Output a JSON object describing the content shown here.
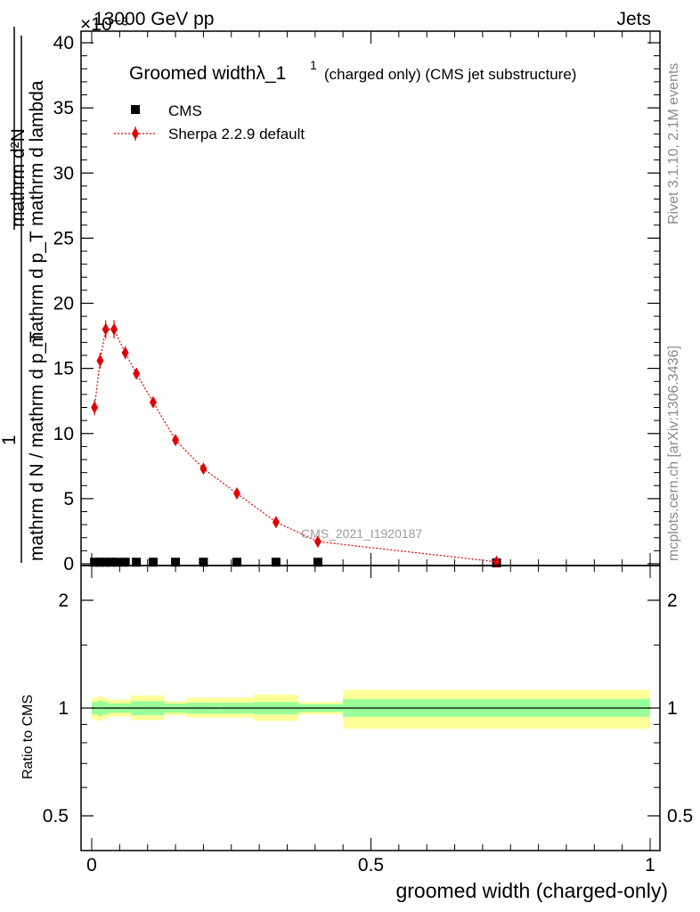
{
  "header": {
    "left_label": "13000 GeV pp",
    "right_label": "Jets",
    "exponent_label": "×10⁻³"
  },
  "side_labels": {
    "rivet": "Rivet 3.1.10,  2.1M events",
    "mcplots": "mcplots.cern.ch [arXiv:1306.3436]"
  },
  "watermark": "CMS_2021_I1920187",
  "main_title": {
    "main": "Groomed widthλ_1",
    "superscript": "1",
    "suffix": "(charged only) (CMS jet substructure)"
  },
  "legend": {
    "entries": [
      {
        "label": "CMS",
        "color": "#000000",
        "marker": "square"
      },
      {
        "label": "Sherpa 2.2.9 default",
        "color": "#e00000",
        "marker": "diamond"
      }
    ]
  },
  "ylabel_main": {
    "numerator_top": "mathrm d²N",
    "numerator_bottom": "mathrm d p_T mathrm d lambda",
    "one": "1",
    "denominator": "mathrm d N / mathrm d p_T"
  },
  "ylabel_ratio": "Ratio to CMS",
  "xlabel": "groomed width (charged-only)",
  "chart_data": [
    {
      "type": "scatter",
      "panel": "main",
      "title": "Groomed widthλ_1",
      "xlim": [
        0,
        1
      ],
      "ylim": [
        0,
        40
      ],
      "y_scale_factor": 0.001,
      "y_ticks": [
        0,
        5,
        10,
        15,
        20,
        25,
        30,
        35,
        40
      ],
      "y_tick_labels": [
        "0",
        "5",
        "10",
        "15",
        "20",
        "25",
        "30",
        "35",
        "40"
      ],
      "series": [
        {
          "name": "CMS",
          "color": "#000000",
          "x": [
            0.005,
            0.015,
            0.025,
            0.035,
            0.045,
            0.06,
            0.08,
            0.11,
            0.15,
            0.2,
            0.26,
            0.33,
            0.405,
            0.725
          ],
          "y": [
            0.12,
            0.12,
            0.12,
            0.12,
            0.12,
            0.12,
            0.12,
            0.12,
            0.12,
            0.12,
            0.12,
            0.12,
            0.12,
            0.05
          ]
        },
        {
          "name": "Sherpa 2.2.9 default",
          "color": "#e00000",
          "x": [
            0.005,
            0.015,
            0.025,
            0.04,
            0.06,
            0.08,
            0.11,
            0.15,
            0.2,
            0.26,
            0.33,
            0.405,
            0.725
          ],
          "y": [
            12.0,
            15.6,
            18.0,
            18.0,
            16.2,
            14.6,
            12.4,
            9.5,
            7.3,
            5.4,
            3.2,
            1.7,
            0.15
          ],
          "yerr": [
            0.6,
            0.6,
            0.7,
            0.7,
            0.5,
            0.4,
            0.3,
            0.25,
            0.2,
            0.2,
            0.15,
            0.1,
            0.05
          ]
        }
      ]
    },
    {
      "type": "area",
      "panel": "ratio",
      "ylabel": "Ratio to CMS",
      "xlabel": "groomed width (charged-only)",
      "xlim": [
        0,
        1
      ],
      "ylim": [
        0.4,
        2.3
      ],
      "y_scale": "log",
      "x_ticks": [
        0,
        0.5,
        1
      ],
      "x_tick_labels": [
        "0",
        "0.5",
        "1"
      ],
      "y_ticks": [
        0.5,
        1,
        2
      ],
      "y_tick_labels": [
        "0.5",
        "1",
        "2"
      ],
      "reference_line": 1,
      "bands": {
        "bins": [
          [
            0,
            0.01
          ],
          [
            0.01,
            0.02
          ],
          [
            0.02,
            0.03
          ],
          [
            0.03,
            0.04
          ],
          [
            0.04,
            0.05
          ],
          [
            0.05,
            0.07
          ],
          [
            0.07,
            0.09
          ],
          [
            0.09,
            0.13
          ],
          [
            0.13,
            0.17
          ],
          [
            0.17,
            0.23
          ],
          [
            0.23,
            0.29
          ],
          [
            0.29,
            0.37
          ],
          [
            0.37,
            0.45
          ],
          [
            0.45,
            1.0
          ]
        ],
        "stat": [
          [
            0.96,
            1.04
          ],
          [
            0.95,
            1.05
          ],
          [
            0.96,
            1.04
          ],
          [
            0.97,
            1.03
          ],
          [
            0.97,
            1.03
          ],
          [
            0.97,
            1.03
          ],
          [
            0.955,
            1.045
          ],
          [
            0.955,
            1.045
          ],
          [
            0.97,
            1.03
          ],
          [
            0.965,
            1.035
          ],
          [
            0.965,
            1.035
          ],
          [
            0.96,
            1.04
          ],
          [
            0.975,
            1.025
          ],
          [
            0.945,
            1.06
          ]
        ],
        "total": [
          [
            0.93,
            1.07
          ],
          [
            0.92,
            1.08
          ],
          [
            0.935,
            1.065
          ],
          [
            0.945,
            1.055
          ],
          [
            0.945,
            1.055
          ],
          [
            0.945,
            1.055
          ],
          [
            0.925,
            1.085
          ],
          [
            0.925,
            1.085
          ],
          [
            0.955,
            1.045
          ],
          [
            0.94,
            1.07
          ],
          [
            0.94,
            1.07
          ],
          [
            0.92,
            1.09
          ],
          [
            0.96,
            1.04
          ],
          [
            0.875,
            1.125
          ]
        ],
        "stat_color": "#99ff99",
        "total_color": "#ffff99"
      }
    }
  ]
}
